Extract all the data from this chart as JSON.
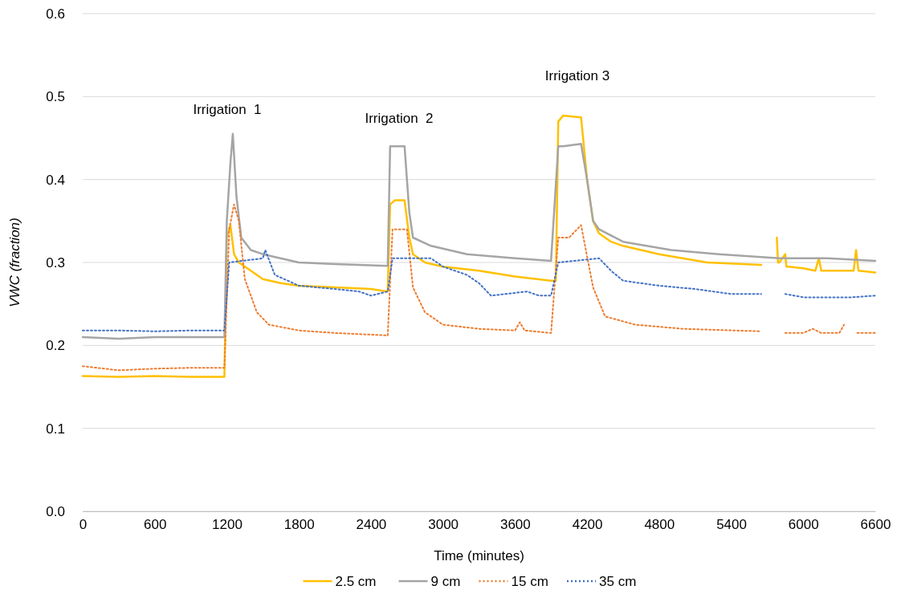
{
  "chart_data": {
    "type": "line",
    "xlabel": "Time (minutes)",
    "ylabel": "VWC (fraction)",
    "xlim": [
      0,
      6600
    ],
    "xticks": [
      0,
      600,
      1200,
      1800,
      2400,
      3000,
      3600,
      4200,
      4800,
      5400,
      6000,
      6600
    ],
    "ylim": [
      0,
      0.6
    ],
    "yticks": [
      {
        "value": 0,
        "label": "0.0"
      },
      0.1,
      0.2,
      0.3,
      0.4,
      0.5,
      0.6
    ],
    "grid": "y",
    "legend": "bottom",
    "marker": "none",
    "annotations": [
      "Irrigation  1",
      "Irrigation  2",
      "Irrigation 3"
    ],
    "series": [
      {
        "name": "2.5 cm",
        "color": "#ffc000",
        "line_style": "solid",
        "x": [
          0,
          300,
          600,
          900,
          1180,
          1200,
          1230,
          1260,
          1300,
          1400,
          1500,
          1650,
          1800,
          2100,
          2400,
          2540,
          2560,
          2600,
          2680,
          2720,
          2750,
          2850,
          3000,
          3300,
          3600,
          3900,
          3940,
          3960,
          4000,
          4150,
          4200,
          4250,
          4300,
          4400,
          4500,
          4800,
          5200,
          5650,
          5700,
          5780,
          5790,
          5800,
          5850,
          5860,
          5880,
          6000,
          6100,
          6130,
          6150,
          6200,
          6300,
          6420,
          6440,
          6460,
          6600
        ],
        "values": [
          0.163,
          0.162,
          0.163,
          0.162,
          0.162,
          0.33,
          0.345,
          0.31,
          0.3,
          0.29,
          0.28,
          0.275,
          0.272,
          0.27,
          0.268,
          0.265,
          0.37,
          0.375,
          0.375,
          0.33,
          0.31,
          0.3,
          0.295,
          0.29,
          0.283,
          0.278,
          0.278,
          0.47,
          0.477,
          0.475,
          0.4,
          0.35,
          0.335,
          0.325,
          0.32,
          0.31,
          0.3,
          0.297,
          null,
          0.33,
          0.3,
          0.3,
          0.31,
          0.295,
          0.295,
          0.293,
          0.29,
          0.305,
          0.29,
          0.29,
          0.29,
          0.29,
          0.315,
          0.29,
          0.288
        ]
      },
      {
        "name": "9 cm",
        "color": "#a5a5a5",
        "line_style": "solid",
        "x": [
          0,
          300,
          600,
          900,
          1180,
          1200,
          1230,
          1250,
          1280,
          1320,
          1400,
          1500,
          1800,
          2100,
          2540,
          2560,
          2600,
          2680,
          2720,
          2750,
          2900,
          3200,
          3600,
          3900,
          3960,
          4000,
          4150,
          4200,
          4250,
          4300,
          4500,
          4900,
          5300,
          5800,
          6200,
          6600
        ],
        "values": [
          0.21,
          0.208,
          0.21,
          0.21,
          0.21,
          0.35,
          0.42,
          0.455,
          0.38,
          0.33,
          0.315,
          0.31,
          0.3,
          0.298,
          0.296,
          0.44,
          0.44,
          0.44,
          0.36,
          0.33,
          0.32,
          0.31,
          0.305,
          0.302,
          0.44,
          0.44,
          0.443,
          0.4,
          0.35,
          0.34,
          0.325,
          0.315,
          0.31,
          0.305,
          0.305,
          0.302
        ]
      },
      {
        "name": "15 cm",
        "color": "#ed7d31",
        "line_style": "dotted",
        "x": [
          0,
          300,
          600,
          900,
          1180,
          1220,
          1260,
          1300,
          1350,
          1450,
          1550,
          1800,
          2100,
          2540,
          2580,
          2700,
          2750,
          2850,
          3000,
          3300,
          3600,
          3640,
          3680,
          3900,
          3960,
          4050,
          4150,
          4250,
          4350,
          4600,
          5000,
          5650,
          5700,
          5850,
          6000,
          6080,
          6150,
          6300,
          6340,
          6400,
          6450,
          6600
        ],
        "values": [
          0.175,
          0.17,
          0.172,
          0.173,
          0.173,
          0.34,
          0.37,
          0.35,
          0.28,
          0.24,
          0.225,
          0.218,
          0.215,
          0.212,
          0.34,
          0.34,
          0.27,
          0.24,
          0.225,
          0.22,
          0.218,
          0.228,
          0.218,
          0.215,
          0.33,
          0.33,
          0.345,
          0.27,
          0.235,
          0.225,
          0.22,
          0.217,
          null,
          0.215,
          0.215,
          0.22,
          0.215,
          0.215,
          0.225,
          null,
          0.215,
          0.215
        ]
      },
      {
        "name": "35 cm",
        "color": "#4472c4",
        "line_style": "dotted",
        "x": [
          0,
          300,
          600,
          900,
          1180,
          1220,
          1500,
          1520,
          1560,
          1600,
          1800,
          2100,
          2300,
          2400,
          2540,
          2580,
          2900,
          3000,
          3200,
          3300,
          3400,
          3700,
          3800,
          3900,
          3960,
          4300,
          4400,
          4500,
          4800,
          5100,
          5400,
          5650,
          5700,
          5850,
          6000,
          6200,
          6400,
          6600
        ],
        "values": [
          0.218,
          0.218,
          0.217,
          0.218,
          0.218,
          0.3,
          0.305,
          0.315,
          0.3,
          0.285,
          0.272,
          0.268,
          0.265,
          0.26,
          0.265,
          0.305,
          0.305,
          0.295,
          0.285,
          0.275,
          0.26,
          0.265,
          0.26,
          0.26,
          0.3,
          0.305,
          0.29,
          0.278,
          0.272,
          0.268,
          0.262,
          0.262,
          null,
          0.262,
          0.258,
          0.258,
          0.258,
          0.26
        ]
      }
    ]
  }
}
